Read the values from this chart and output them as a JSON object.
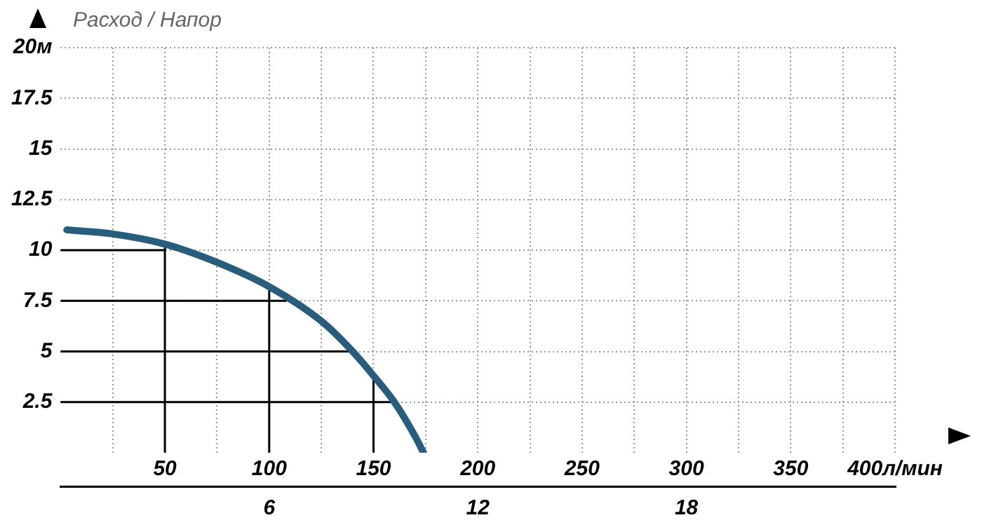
{
  "chart_data": {
    "type": "line",
    "title": "Расход / Напор",
    "series": [
      {
        "color": "#2a5d7c",
        "x": [
          3,
          25,
          50,
          75,
          100,
          125,
          140,
          150,
          160,
          170,
          174
        ],
        "values": [
          11.0,
          10.8,
          10.3,
          9.4,
          8.2,
          6.5,
          5,
          3.8,
          2.5,
          0.8,
          0
        ]
      },
      {
        "color": "#000000",
        "x": [
          0,
          50
        ],
        "values": [
          10,
          10
        ]
      },
      {
        "color": "#000000",
        "x": [
          50,
          50
        ],
        "values": [
          0,
          10.3
        ]
      },
      {
        "color": "#000000",
        "x": [
          0,
          108
        ],
        "values": [
          7.5,
          7.5
        ]
      },
      {
        "color": "#000000",
        "x": [
          100,
          100
        ],
        "values": [
          0,
          8.2
        ]
      },
      {
        "color": "#000000",
        "x": [
          0,
          139
        ],
        "values": [
          5,
          5
        ]
      },
      {
        "color": "#000000",
        "x": [
          150,
          150
        ],
        "values": [
          0,
          3.8
        ]
      },
      {
        "color": "#000000",
        "x": [
          0,
          160
        ],
        "values": [
          2.5,
          2.5
        ]
      }
    ],
    "xlim": [
      0,
      400
    ],
    "xticks": [
      {
        "value": 25,
        "label": null
      },
      50,
      {
        "value": 75,
        "label": null
      },
      100,
      {
        "value": 125,
        "label": null
      },
      150,
      {
        "value": 175,
        "label": null
      },
      200,
      {
        "value": 225,
        "label": null
      },
      250,
      {
        "value": 275,
        "label": null
      },
      300,
      {
        "value": 325,
        "label": null
      },
      350,
      {
        "value": 375,
        "label": null
      },
      {
        "value": 400,
        "label": "400л/мин"
      }
    ],
    "ylim": [
      0,
      20
    ],
    "yticks": [
      2.5,
      5,
      7.5,
      10,
      12.5,
      15,
      17.5,
      {
        "value": 20,
        "label": "20м"
      }
    ],
    "x2lim": [
      0,
      24
    ],
    "x2ticks": [
      6,
      12,
      18
    ],
    "grid": true,
    "marker": "none",
    "line_style": "solid"
  }
}
